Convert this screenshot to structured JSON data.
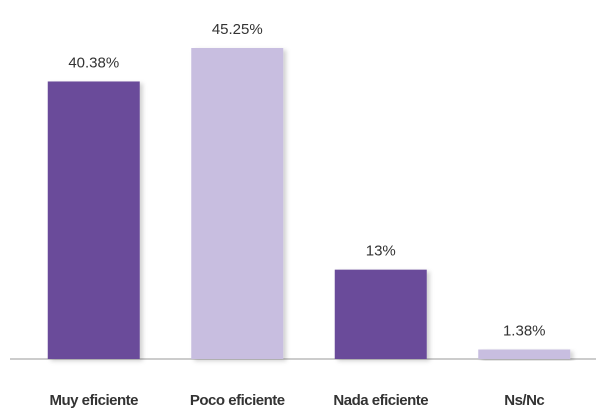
{
  "chart_data": {
    "type": "bar",
    "categories": [
      "Muy eficiente",
      "Poco eficiente",
      "Nada eficiente",
      "Ns/Nc"
    ],
    "values": [
      40.38,
      45.25,
      13,
      1.38
    ],
    "value_labels": [
      "40.38%",
      "45.25%",
      "13%",
      "1.38%"
    ],
    "colors": [
      "#6b4c9a",
      "#c8bee0",
      "#6b4c9a",
      "#c8bee0"
    ]
  }
}
